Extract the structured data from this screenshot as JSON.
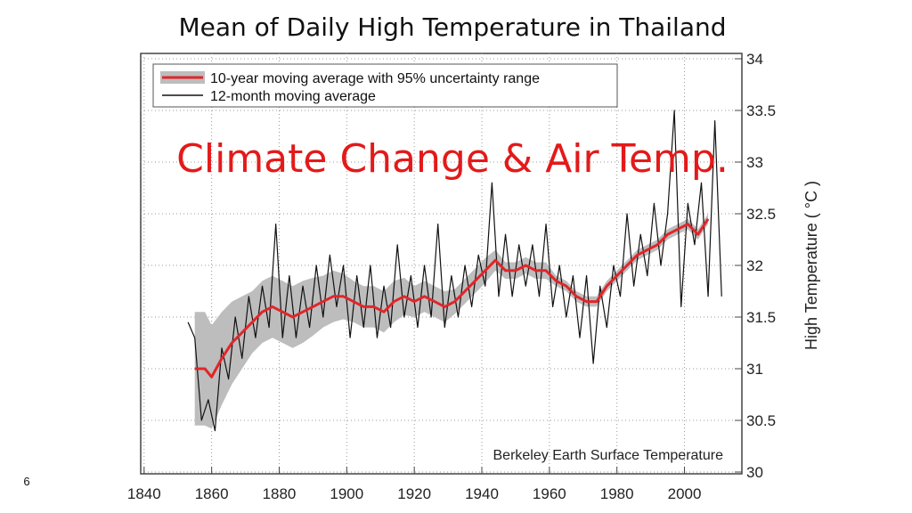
{
  "slide_title": "Mean of Daily High Temperature in Thailand",
  "overlay_text": "Climate Change & Air Temp.",
  "page_number": "6",
  "chart_data": {
    "type": "line",
    "y_label": "High Temperature ( °C )",
    "annotation": "Berkeley Earth Surface Temperature",
    "xlim": [
      1839,
      2017
    ],
    "xticks": [
      1840,
      1860,
      1880,
      1900,
      1920,
      1940,
      1960,
      1980,
      2000
    ],
    "ylim": [
      30,
      34
    ],
    "yticks": [
      30,
      30.5,
      31,
      31.5,
      32,
      32.5,
      33,
      33.5,
      34
    ],
    "grid": true,
    "legend": "top-left",
    "band_color": "#bdbdbd",
    "series": [
      {
        "name": "10-year moving average with 95% uncertainty range",
        "color": "#e0262a",
        "x": [
          1855,
          1858,
          1860,
          1863,
          1866,
          1869,
          1872,
          1875,
          1878,
          1881,
          1884,
          1887,
          1890,
          1893,
          1896,
          1899,
          1902,
          1905,
          1908,
          1911,
          1914,
          1917,
          1920,
          1923,
          1926,
          1929,
          1932,
          1935,
          1938,
          1941,
          1944,
          1947,
          1950,
          1953,
          1956,
          1959,
          1962,
          1965,
          1968,
          1971,
          1974,
          1977,
          1980,
          1983,
          1986,
          1989,
          1992,
          1995,
          1998,
          2001,
          2004,
          2007
        ],
        "values": [
          31.0,
          31.0,
          30.92,
          31.1,
          31.25,
          31.35,
          31.45,
          31.55,
          31.6,
          31.55,
          31.5,
          31.55,
          31.6,
          31.65,
          31.7,
          31.7,
          31.65,
          31.6,
          31.6,
          31.55,
          31.65,
          31.7,
          31.65,
          31.7,
          31.65,
          31.6,
          31.65,
          31.75,
          31.85,
          31.95,
          32.05,
          31.95,
          31.95,
          32.0,
          31.95,
          31.95,
          31.85,
          31.8,
          31.7,
          31.65,
          31.65,
          31.8,
          31.9,
          32.0,
          32.1,
          32.15,
          32.2,
          32.3,
          32.35,
          32.4,
          32.3,
          32.45
        ],
        "lower": [
          30.45,
          30.45,
          30.42,
          30.65,
          30.85,
          31.0,
          31.15,
          31.25,
          31.3,
          31.25,
          31.2,
          31.25,
          31.32,
          31.4,
          31.45,
          31.48,
          31.45,
          31.4,
          31.4,
          31.35,
          31.45,
          31.52,
          31.5,
          31.55,
          31.5,
          31.45,
          31.53,
          31.63,
          31.73,
          31.83,
          31.95,
          31.87,
          31.87,
          31.92,
          31.87,
          31.87,
          31.8,
          31.75,
          31.65,
          31.6,
          31.6,
          31.75,
          31.85,
          31.95,
          32.05,
          32.1,
          32.15,
          32.25,
          32.3,
          32.35,
          32.25,
          32.4
        ],
        "upper": [
          31.55,
          31.55,
          31.42,
          31.55,
          31.65,
          31.7,
          31.75,
          31.85,
          31.9,
          31.85,
          31.8,
          31.85,
          31.88,
          31.9,
          31.95,
          31.92,
          31.85,
          31.8,
          31.8,
          31.75,
          31.85,
          31.88,
          31.8,
          31.85,
          31.8,
          31.75,
          31.77,
          31.87,
          31.97,
          32.07,
          32.15,
          32.03,
          32.03,
          32.08,
          32.03,
          32.03,
          31.9,
          31.85,
          31.75,
          31.7,
          31.7,
          31.85,
          31.95,
          32.05,
          32.15,
          32.2,
          32.25,
          32.35,
          32.4,
          32.45,
          32.35,
          32.5
        ]
      },
      {
        "name": "12-month moving average",
        "color": "#111111",
        "x": [
          1853,
          1855,
          1857,
          1859,
          1861,
          1863,
          1865,
          1867,
          1869,
          1871,
          1873,
          1875,
          1877,
          1879,
          1881,
          1883,
          1885,
          1887,
          1889,
          1891,
          1893,
          1895,
          1897,
          1899,
          1901,
          1903,
          1905,
          1907,
          1909,
          1911,
          1913,
          1915,
          1917,
          1919,
          1921,
          1923,
          1925,
          1927,
          1929,
          1931,
          1933,
          1935,
          1937,
          1939,
          1941,
          1943,
          1945,
          1947,
          1949,
          1951,
          1953,
          1955,
          1957,
          1959,
          1961,
          1963,
          1965,
          1967,
          1969,
          1971,
          1973,
          1975,
          1977,
          1979,
          1981,
          1983,
          1985,
          1987,
          1989,
          1991,
          1993,
          1995,
          1997,
          1999,
          2001,
          2003,
          2005,
          2007,
          2009,
          2011
        ],
        "values": [
          31.45,
          31.3,
          30.5,
          30.7,
          30.4,
          31.2,
          30.9,
          31.5,
          31.1,
          31.7,
          31.3,
          31.8,
          31.4,
          32.4,
          31.3,
          31.9,
          31.3,
          31.8,
          31.4,
          32.0,
          31.5,
          32.1,
          31.6,
          32.0,
          31.3,
          31.9,
          31.4,
          32.0,
          31.3,
          31.8,
          31.4,
          32.2,
          31.5,
          31.9,
          31.4,
          32.0,
          31.5,
          32.4,
          31.4,
          31.9,
          31.5,
          32.0,
          31.6,
          32.1,
          31.8,
          32.8,
          31.7,
          32.3,
          31.7,
          32.2,
          31.8,
          32.2,
          31.7,
          32.4,
          31.6,
          32.0,
          31.5,
          31.9,
          31.3,
          31.9,
          31.05,
          31.8,
          31.4,
          32.0,
          31.7,
          32.5,
          31.8,
          32.3,
          31.9,
          32.6,
          32.0,
          32.5,
          33.5,
          31.6,
          32.6,
          32.2,
          32.8,
          31.7,
          33.4,
          31.7
        ]
      }
    ]
  }
}
